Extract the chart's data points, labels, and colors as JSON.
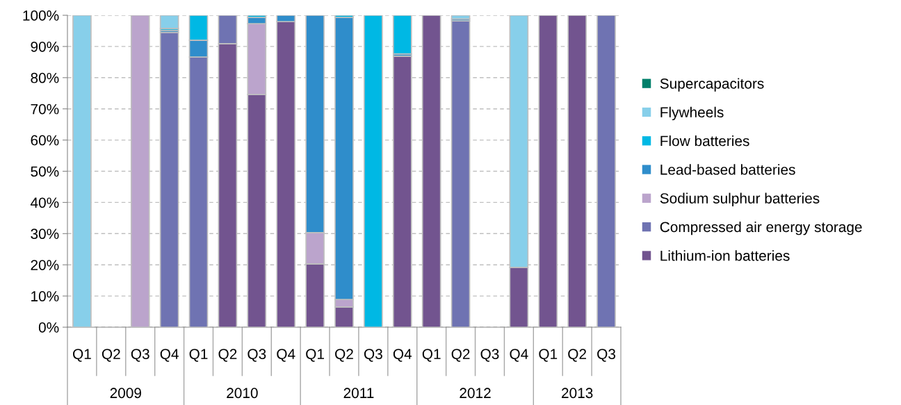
{
  "chart_data": {
    "type": "bar",
    "stacked": true,
    "categories": [
      "Q1",
      "Q2",
      "Q3",
      "Q4",
      "Q1",
      "Q2",
      "Q3",
      "Q4",
      "Q1",
      "Q2",
      "Q3",
      "Q4",
      "Q1",
      "Q2",
      "Q3",
      "Q4",
      "Q1",
      "Q2",
      "Q3"
    ],
    "annotations": [
      "2009",
      "2010",
      "2011",
      "2012",
      "2013"
    ],
    "series": [
      {
        "name": "Lithium-ion batteries",
        "color": "#72548f",
        "values": [
          0,
          0,
          0,
          0,
          0,
          90.9,
          74.6,
          98,
          20.3,
          6.5,
          0,
          86.9,
          100,
          0,
          0,
          19.2,
          100,
          100,
          0
        ]
      },
      {
        "name": "Compressed air energy storage",
        "color": "#6f73b2",
        "values": [
          0,
          0,
          0,
          94.5,
          86.6,
          9.1,
          0,
          0,
          0,
          0,
          0,
          0,
          0,
          98.2,
          0,
          0,
          0,
          0,
          100
        ]
      },
      {
        "name": "Sodium sulphur batteries",
        "color": "#bba4cc",
        "values": [
          0,
          0,
          100,
          0,
          0,
          0,
          22.7,
          0,
          10,
          2.4,
          0,
          0,
          0,
          0,
          0,
          0,
          0,
          0,
          0
        ]
      },
      {
        "name": "Lead-based batteries",
        "color": "#2f8dcb",
        "values": [
          0,
          0,
          0,
          0.7,
          5.4,
          0,
          2,
          2,
          69.7,
          90.4,
          0,
          0.7,
          0,
          0.6,
          0,
          0,
          0,
          0,
          0
        ]
      },
      {
        "name": "Flow batteries",
        "color": "#00b8e4",
        "values": [
          0,
          0,
          0,
          0.6,
          8,
          0,
          0.7,
          0,
          0,
          0.7,
          100,
          12.4,
          0,
          0,
          0,
          0,
          0,
          0,
          0
        ]
      },
      {
        "name": "Flywheels",
        "color": "#87cfea",
        "values": [
          100,
          0,
          0,
          4.2,
          0,
          0,
          0,
          0,
          0,
          0,
          0,
          0,
          0,
          1.2,
          0,
          80.8,
          0,
          0,
          0
        ]
      },
      {
        "name": "Supercapacitors",
        "color": "#007f6a",
        "values": [
          0,
          0,
          0,
          0,
          0,
          0,
          0,
          0,
          0,
          0,
          0,
          0,
          0,
          0,
          0,
          0,
          0,
          0,
          0
        ]
      }
    ],
    "ylim": [
      0,
      100
    ],
    "yticks": [
      {
        "value": 0,
        "label": "0%"
      },
      {
        "value": 10,
        "label": "10%"
      },
      {
        "value": 20,
        "label": "20%"
      },
      {
        "value": 30,
        "label": "30%"
      },
      {
        "value": 40,
        "label": "40%"
      },
      {
        "value": 50,
        "label": "50%"
      },
      {
        "value": 60,
        "label": "60%"
      },
      {
        "value": 70,
        "label": "70%"
      },
      {
        "value": 80,
        "label": "80%"
      },
      {
        "value": 90,
        "label": "90%"
      },
      {
        "value": 100,
        "label": "100%"
      }
    ],
    "grid": "y",
    "legend": "right"
  }
}
